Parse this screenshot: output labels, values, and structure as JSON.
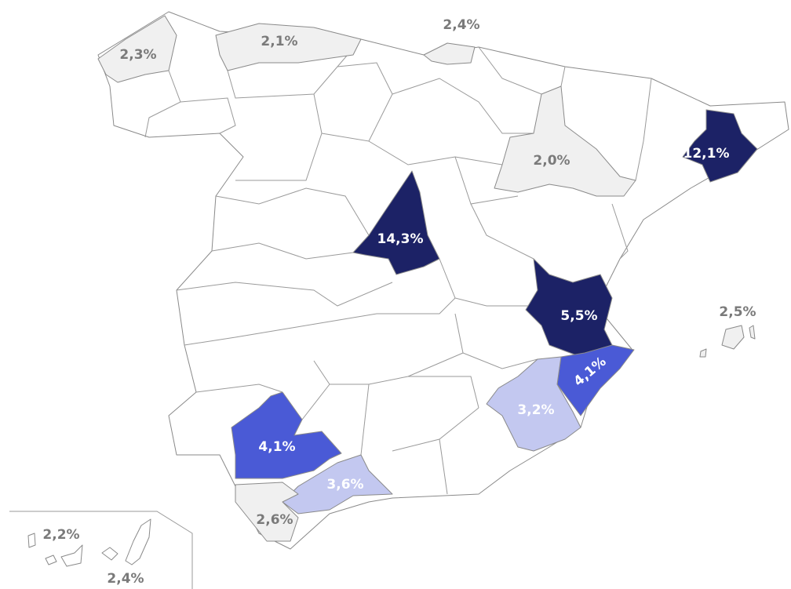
{
  "regions": [
    {
      "label": "2,3%",
      "fill": "#f0f0f0"
    },
    {
      "label": "2,1%",
      "fill": "#f0f0f0"
    },
    {
      "label": "2,4%",
      "fill": "#f0f0f0"
    },
    {
      "label": "2,0%",
      "fill": "#f0f0f0"
    },
    {
      "label": "12,1%",
      "fill": "#1c2266"
    },
    {
      "label": "14,3%",
      "fill": "#1c2266"
    },
    {
      "label": "5,5%",
      "fill": "#1c2266"
    },
    {
      "label": "4,1%",
      "fill": "#4a5ad6"
    },
    {
      "label": "3,2%",
      "fill": "#c3c8f0"
    },
    {
      "label": "4,1%",
      "fill": "#4a5ad6"
    },
    {
      "label": "3,6%",
      "fill": "#c3c8f0"
    },
    {
      "label": "2,6%",
      "fill": "#f0f0f0"
    },
    {
      "label": "2,5%",
      "fill": "#f0f0f0"
    },
    {
      "label": "2,2%",
      "fill": "#ffffff"
    },
    {
      "label": "2,4%",
      "fill": "#ffffff"
    }
  ]
}
